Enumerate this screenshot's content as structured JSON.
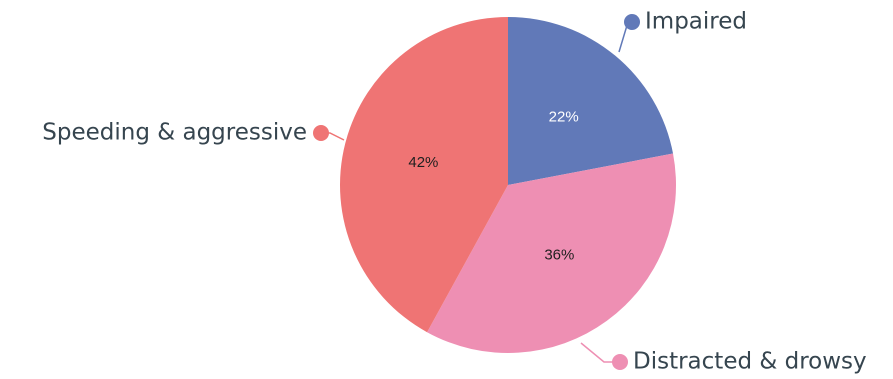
{
  "chart_data": {
    "type": "pie",
    "slices": [
      {
        "label": "Impaired",
        "value": 22,
        "value_label": "22%",
        "color": "#6179b8",
        "text_color": "#ffffff"
      },
      {
        "label": "Distracted & drowsy",
        "value": 36,
        "value_label": "36%",
        "color": "#ee8fb3",
        "text_color": "#1f1f1f"
      },
      {
        "label": "Speeding & aggressive",
        "value": 42,
        "value_label": "42%",
        "color": "#ef7474",
        "text_color": "#1f1f1f"
      }
    ],
    "start_angle": "12 o'clock",
    "direction": "clockwise"
  }
}
